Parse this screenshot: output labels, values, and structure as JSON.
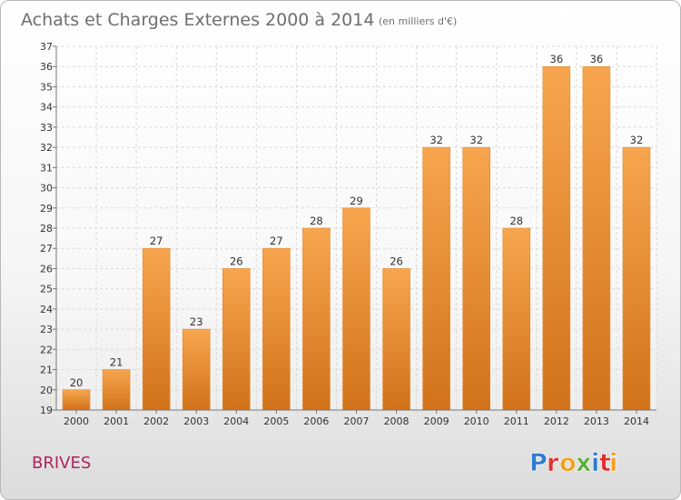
{
  "chart": {
    "title": "Achats et Charges Externes 2000 à 2014",
    "unit": "(en milliers d'€)",
    "location": "BRIVES",
    "logo_text": "Proxiti",
    "logo_colors": [
      "#2e7bcf",
      "#e03030",
      "#f0a020",
      "#5aae3a",
      "#2e7bcf",
      "#e03030",
      "#f0a020"
    ]
  },
  "chart_data": {
    "type": "bar",
    "categories": [
      "2000",
      "2001",
      "2002",
      "2003",
      "2004",
      "2005",
      "2006",
      "2007",
      "2008",
      "2009",
      "2010",
      "2011",
      "2012",
      "2013",
      "2014"
    ],
    "values": [
      20,
      21,
      27,
      23,
      26,
      27,
      28,
      29,
      26,
      32,
      32,
      28,
      36,
      36,
      32
    ],
    "title": "Achats et Charges Externes 2000 à 2014",
    "subtitle": "(en milliers d'€)",
    "xlabel": "",
    "ylabel": "",
    "ylim": [
      19,
      37
    ],
    "yticks": [
      19,
      20,
      21,
      22,
      23,
      24,
      25,
      26,
      27,
      28,
      29,
      30,
      31,
      32,
      33,
      34,
      35,
      36,
      37
    ],
    "grid": true,
    "bar_color_top": "#f7a64e",
    "bar_color_bottom": "#d1721a"
  }
}
